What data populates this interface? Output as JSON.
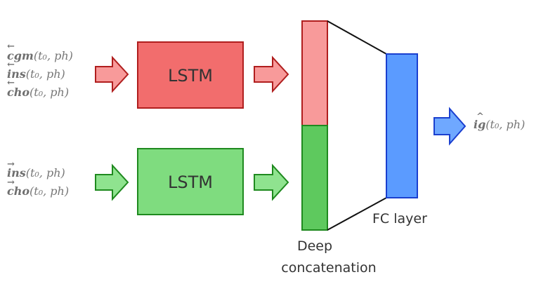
{
  "inputs_top": [
    {
      "var": "cgm",
      "arrow": "←",
      "args": "(t₀, ph)"
    },
    {
      "var": "ins",
      "arrow": "←",
      "args": "(t₀, ph)"
    },
    {
      "var": "cho",
      "arrow": "←",
      "args": "(t₀, ph)"
    }
  ],
  "inputs_bottom": [
    {
      "var": "ins",
      "arrow": "→",
      "args": "(t₀, ph)"
    },
    {
      "var": "cho",
      "arrow": "→",
      "args": "(t₀, ph)"
    }
  ],
  "lstm_top_label": "LSTM",
  "lstm_bottom_label": "LSTM",
  "concat_label_line1": "Deep",
  "concat_label_line2": "concatenation",
  "fc_label": "FC layer",
  "output": {
    "var": "ig",
    "hat": "^",
    "args": "(t₀, ph)"
  },
  "colors": {
    "red_fill": "#f26d6d",
    "red_light": "#f89a9a",
    "red_stroke": "#b01e1e",
    "green_fill": "#7fdc7f",
    "green_bar": "#5ec95e",
    "green_stroke": "#1f8a1f",
    "blue_fill": "#5b9bff",
    "blue_stroke": "#1a3fcf"
  }
}
